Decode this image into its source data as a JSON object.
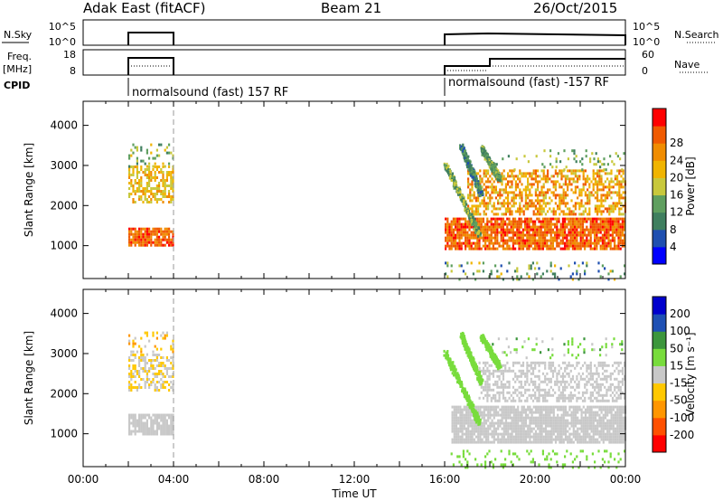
{
  "header": {
    "station": "Adak East (fitACF)",
    "beam": "Beam 21",
    "date": "26/Oct/2015"
  },
  "aux": {
    "nsky_label": "N.Sky",
    "nsky_ticks": [
      "10^5",
      "10^0"
    ],
    "nsearch_label": "N.Search",
    "nsearch_ticks": [
      "10^5",
      "10^0"
    ],
    "freq_label": "Freq.",
    "freq_unit": "[MHz]",
    "freq_ticks": [
      "18",
      "8"
    ],
    "nave_label": "Nave",
    "nave_ticks": [
      "60",
      "0"
    ],
    "cpid_label": "CPID",
    "cpid_segments": [
      {
        "start_h": 2.0,
        "end_h": 4.0,
        "label": "normalsound (fast) 157 RF"
      },
      {
        "start_h": 16.0,
        "end_h": 24.0,
        "label": "normalsound (fast) -157 RF"
      }
    ]
  },
  "colors": {
    "power": [
      "#0000ff",
      "#1f4fb0",
      "#3f7f5f",
      "#5f9f5f",
      "#c8c83c",
      "#f0b400",
      "#f08c00",
      "#f05a00",
      "#ff0000"
    ],
    "velocity": [
      "#ff0000",
      "#ff5000",
      "#ff9600",
      "#ffc800",
      "#c8c8c8",
      "#78dc3c",
      "#3c963c",
      "#1e50b4",
      "#0000cd"
    ]
  },
  "chart_data": [
    {
      "type": "heatmap",
      "name": "power",
      "ylabel": "Slant Range [km]",
      "xlabel": "",
      "xlim_hours": [
        0,
        24
      ],
      "ylim_km": [
        180,
        4600
      ],
      "yticks": [
        1000,
        2000,
        3000,
        4000
      ],
      "colorbar_label": "Power [dB]",
      "colorbar_ticks": [
        "4",
        "8",
        "12",
        "16",
        "20",
        "24",
        "28"
      ],
      "colorbar_range": [
        0,
        32
      ],
      "regions": [
        {
          "t0": 2.0,
          "t1": 4.0,
          "r0": 1000,
          "r1": 1450,
          "v0": 22,
          "v1": 32,
          "density": 0.9
        },
        {
          "t0": 2.0,
          "t1": 4.0,
          "r0": 2100,
          "r1": 3000,
          "v0": 14,
          "v1": 24,
          "density": 0.6
        },
        {
          "t0": 2.0,
          "t1": 4.0,
          "r0": 3000,
          "r1": 3550,
          "v0": 8,
          "v1": 20,
          "density": 0.2
        },
        {
          "t0": 16.0,
          "t1": 24.0,
          "r0": 900,
          "r1": 1700,
          "v0": 22,
          "v1": 32,
          "density": 0.85
        },
        {
          "t0": 17.0,
          "t1": 24.0,
          "r0": 1800,
          "r1": 2900,
          "v0": 16,
          "v1": 28,
          "density": 0.55
        },
        {
          "t0": 18.0,
          "t1": 24.0,
          "r0": 2900,
          "r1": 3400,
          "v0": 8,
          "v1": 18,
          "density": 0.12
        },
        {
          "t0": 16.0,
          "t1": 24.0,
          "r0": 180,
          "r1": 600,
          "v0": 2,
          "v1": 20,
          "density": 0.15
        }
      ],
      "tracks": [
        {
          "t0": 16.0,
          "r0": 3050,
          "t1": 17.5,
          "r1": 1300,
          "v0": 6,
          "v1": 18
        },
        {
          "t0": 16.7,
          "r0": 3500,
          "t1": 17.6,
          "r1": 2300,
          "v0": 4,
          "v1": 14
        },
        {
          "t0": 17.6,
          "r0": 3450,
          "t1": 18.4,
          "r1": 2700,
          "v0": 6,
          "v1": 16
        }
      ]
    },
    {
      "type": "heatmap",
      "name": "velocity",
      "ylabel": "Slant Range [km]",
      "xlabel": "Time UT",
      "xlim_hours": [
        0,
        24
      ],
      "ylim_km": [
        180,
        4600
      ],
      "yticks": [
        1000,
        2000,
        3000,
        4000
      ],
      "xticks": [
        "00:00",
        "04:00",
        "08:00",
        "12:00",
        "16:00",
        "20:00",
        "00:00"
      ],
      "colorbar_label": "Velocity [m s⁻¹]",
      "colorbar_ticks": [
        "-200",
        "-100",
        "-50",
        "-15",
        "15",
        "50",
        "100",
        "200"
      ],
      "regions": [
        {
          "t0": 2.0,
          "t1": 4.0,
          "r0": 1000,
          "r1": 1500,
          "v0": 4,
          "v1": 4,
          "density": 0.9
        },
        {
          "t0": 2.0,
          "t1": 4.0,
          "r0": 2100,
          "r1": 3000,
          "v0": 3,
          "v1": 4,
          "density": 0.55
        },
        {
          "t0": 2.0,
          "t1": 4.0,
          "r0": 3000,
          "r1": 3550,
          "v0": 2,
          "v1": 4,
          "density": 0.2
        },
        {
          "t0": 16.3,
          "t1": 24.0,
          "r0": 800,
          "r1": 1700,
          "v0": 4,
          "v1": 4,
          "density": 0.85
        },
        {
          "t0": 17.5,
          "t1": 24.0,
          "r0": 1800,
          "r1": 2800,
          "v0": 4,
          "v1": 4,
          "density": 0.5
        },
        {
          "t0": 18.0,
          "t1": 24.0,
          "r0": 2900,
          "r1": 3400,
          "v0": 4,
          "v1": 6,
          "density": 0.12
        },
        {
          "t0": 16.0,
          "t1": 24.0,
          "r0": 180,
          "r1": 600,
          "v0": 5,
          "v1": 5,
          "density": 0.15
        }
      ],
      "tracks": [
        {
          "t0": 16.0,
          "r0": 3050,
          "t1": 17.5,
          "r1": 1300,
          "v0": 5,
          "v1": 5
        },
        {
          "t0": 16.7,
          "r0": 3500,
          "t1": 17.6,
          "r1": 2300,
          "v0": 5,
          "v1": 5
        },
        {
          "t0": 17.6,
          "r0": 3450,
          "t1": 18.4,
          "r1": 2700,
          "v0": 5,
          "v1": 5
        }
      ]
    }
  ]
}
